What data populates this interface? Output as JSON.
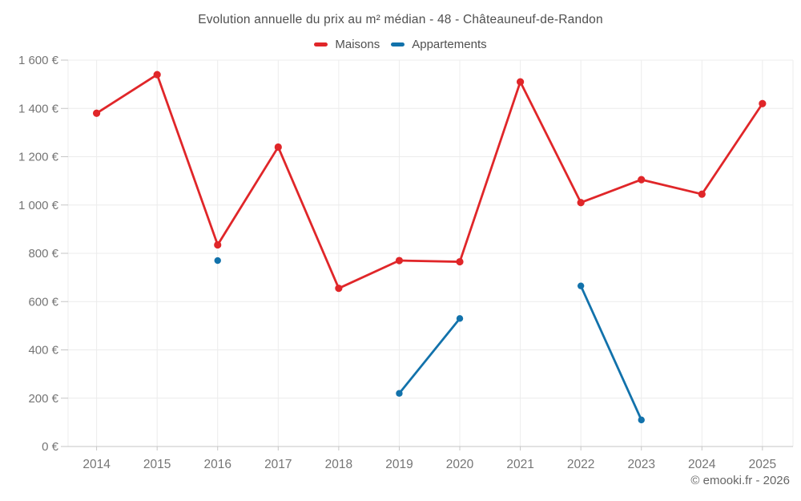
{
  "footer": "© emooki.fr - 2026",
  "legend": [
    {
      "label": "Maisons",
      "color": "#e02629"
    },
    {
      "label": "Appartements",
      "color": "#1272ab"
    }
  ],
  "colors": {
    "grid": "#ececec",
    "axis": "#c6c6c6",
    "tick_text": "#757575",
    "title_text": "#4f4f4f"
  },
  "chart_data": {
    "type": "line",
    "title": "Evolution annuelle du prix au m² médian - 48 - Châteauneuf-de-Randon",
    "x": [
      "2014",
      "2015",
      "2016",
      "2017",
      "2018",
      "2019",
      "2020",
      "2021",
      "2022",
      "2023",
      "2024",
      "2025"
    ],
    "series": [
      {
        "name": "Maisons",
        "color": "#e02629",
        "values": [
          1380,
          1540,
          835,
          1240,
          655,
          770,
          765,
          1510,
          1010,
          1105,
          1045,
          1420
        ]
      },
      {
        "name": "Appartements",
        "color": "#1272ab",
        "values": [
          null,
          null,
          770,
          null,
          null,
          220,
          530,
          null,
          665,
          110,
          null,
          null
        ]
      }
    ],
    "ylim": [
      0,
      1600
    ],
    "yticks": [
      {
        "value": 0,
        "label": "0 €"
      },
      {
        "value": 200,
        "label": "200 €"
      },
      {
        "value": 400,
        "label": "400 €"
      },
      {
        "value": 600,
        "label": "600 €"
      },
      {
        "value": 800,
        "label": "800 €"
      },
      {
        "value": 1000,
        "label": "1 000 €"
      },
      {
        "value": 1200,
        "label": "1 200 €"
      },
      {
        "value": 1400,
        "label": "1 400 €"
      },
      {
        "value": 1600,
        "label": "1 600 €"
      }
    ],
    "grid": true,
    "legend_position": "top",
    "currency": "EUR"
  }
}
